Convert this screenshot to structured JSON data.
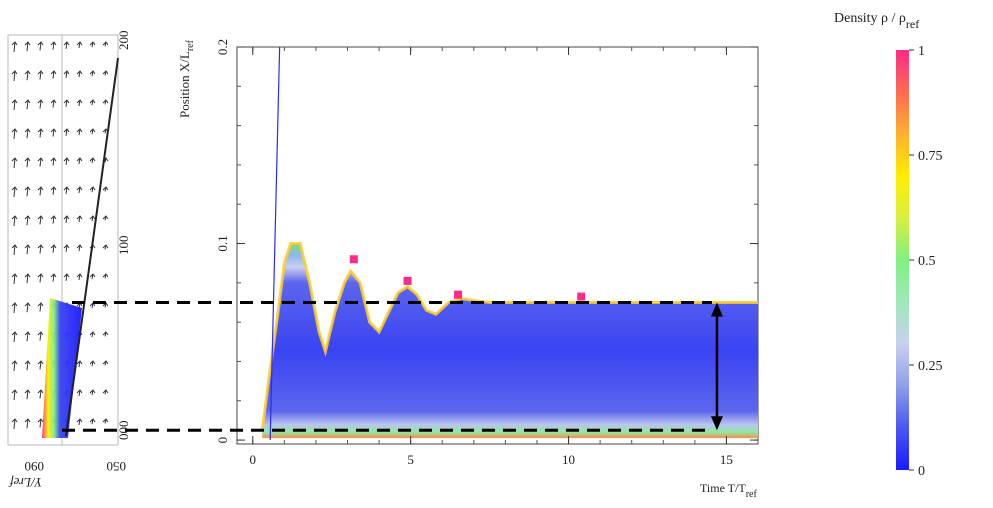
{
  "colorbar": {
    "title_main": "Density ρ / ρ",
    "title_sub": "ref",
    "ticks": [
      "1",
      "0.75",
      "0.5",
      "0.25",
      "0"
    ],
    "tick_values": [
      1,
      0.75,
      0.5,
      0.25,
      0
    ],
    "stops": [
      "#1a1aff",
      "#4a57f0",
      "#8f9fe8",
      "#c8d0f0",
      "#9fe8b8",
      "#80f080",
      "#d8f040",
      "#ffee00",
      "#ffb030",
      "#ff6a50",
      "#ff2a8a"
    ]
  },
  "left_panel": {
    "label_top": "200",
    "label_mid": "100",
    "label_bot": "000",
    "label_bottom_left": "090",
    "label_bottom_right": "050",
    "axis_title": "Y/Lref"
  },
  "chart_data": {
    "type": "heatmap",
    "title": "",
    "xlabel_main": "Time T/T",
    "xlabel_sub": "ref",
    "ylabel_main": "Position X/L",
    "ylabel_sub": "ref",
    "xlim": [
      -0.5,
      16
    ],
    "ylim": [
      -0.002,
      0.2
    ],
    "xticks": [
      0,
      5,
      10,
      15
    ],
    "xtick_labels": [
      "0",
      "5",
      "10",
      "15"
    ],
    "yticks": [
      0,
      0.1,
      0.2
    ],
    "ytick_labels": [
      "0",
      "0.1",
      "0.2"
    ],
    "front_boundary": {
      "t": [
        0.3,
        0.5,
        0.8,
        1.0,
        1.2,
        1.5,
        1.8,
        2.1,
        2.3,
        2.6,
        2.9,
        3.1,
        3.4,
        3.7,
        4.0,
        4.3,
        4.6,
        4.9,
        5.2,
        5.5,
        5.8,
        6.2,
        6.6,
        7.0,
        7.5,
        8.0,
        9.0,
        10.0,
        12.0,
        16.0
      ],
      "x": [
        0.005,
        0.03,
        0.065,
        0.09,
        0.1,
        0.1,
        0.08,
        0.055,
        0.045,
        0.065,
        0.08,
        0.086,
        0.08,
        0.06,
        0.055,
        0.065,
        0.075,
        0.078,
        0.074,
        0.066,
        0.064,
        0.07,
        0.072,
        0.071,
        0.07,
        0.07,
        0.07,
        0.07,
        0.07,
        0.07
      ]
    },
    "blue_line": {
      "t": [
        0.55,
        0.85
      ],
      "x": [
        0.0,
        0.2
      ]
    },
    "hotspots": [
      {
        "t": 3.2,
        "x": 0.092
      },
      {
        "t": 4.9,
        "x": 0.081
      },
      {
        "t": 6.5,
        "x": 0.074
      },
      {
        "t": 10.4,
        "x": 0.073
      }
    ],
    "reference_lines": {
      "upper_x": 0.07,
      "lower_x": 0.005,
      "arrow_t": 14.7
    }
  }
}
